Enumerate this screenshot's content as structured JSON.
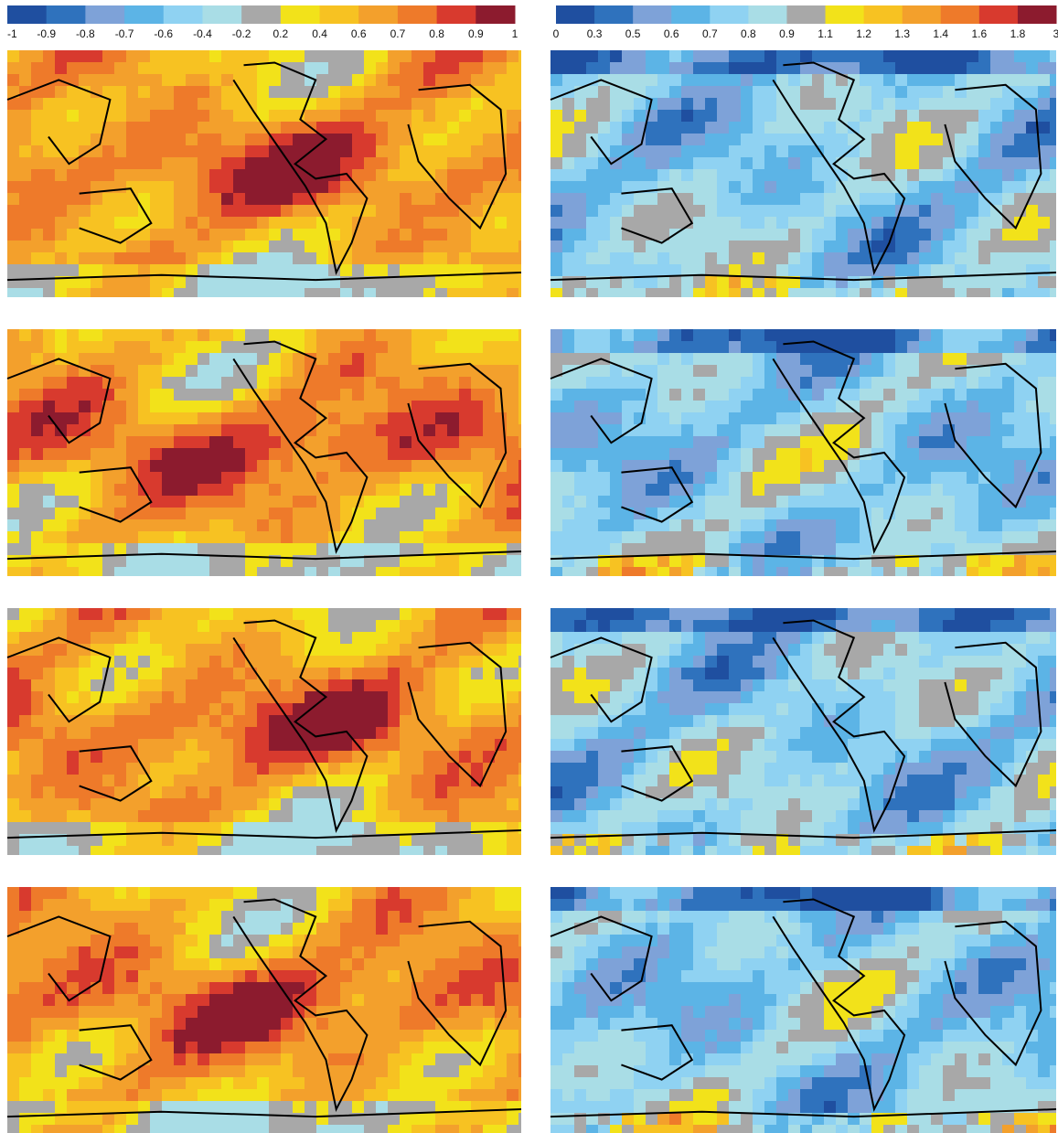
{
  "colorbars": [
    {
      "ticks": [
        -1,
        -0.9,
        -0.8,
        -0.7,
        -0.6,
        -0.4,
        -0.2,
        0.2,
        0.4,
        0.6,
        0.7,
        0.8,
        0.9,
        1
      ],
      "colors": [
        "#1f4fa0",
        "#2f72bd",
        "#7ea2d8",
        "#5cb4e6",
        "#8fd2f2",
        "#a9dde6",
        "#a8a8a8",
        "#f2e21a",
        "#f7c222",
        "#f3a02c",
        "#ee7a2a",
        "#d83a2e",
        "#8c1b2e"
      ]
    },
    {
      "ticks": [
        0,
        0.3,
        0.5,
        0.6,
        0.7,
        0.8,
        0.9,
        1.1,
        1.2,
        1.3,
        1.4,
        1.6,
        1.8,
        3
      ],
      "colors": [
        "#1f4fa0",
        "#2f72bd",
        "#7ea2d8",
        "#5cb4e6",
        "#8fd2f2",
        "#a9dde6",
        "#a8a8a8",
        "#f2e21a",
        "#f7c222",
        "#f3a02c",
        "#ee7a2a",
        "#d83a2e",
        "#8c1b2e"
      ]
    }
  ]
}
